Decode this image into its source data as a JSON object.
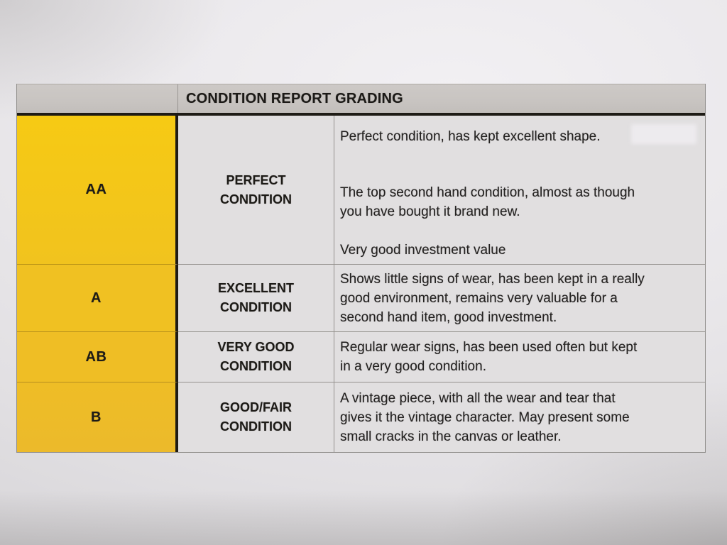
{
  "document": {
    "header": {
      "title": "CONDITION REPORT GRADING"
    },
    "rows": [
      {
        "grade": "AA",
        "condition": "PERFECT\nCONDITION",
        "description_paragraphs": [
          "Perfect condition, has kept excellent shape.",
          "The top second hand condition, almost as though\nyou have bought it brand new.",
          "Very good investment value"
        ]
      },
      {
        "grade": "A",
        "condition": "EXCELLENT\nCONDITION",
        "description_paragraphs": [
          "Shows little signs of wear, has been kept in a really\ngood environment, remains very valuable for a\nsecond hand item, good investment."
        ]
      },
      {
        "grade": "AB",
        "condition": "VERY GOOD\nCONDITION",
        "description_paragraphs": [
          "Regular wear signs, has been used often but kept\nin a very good condition."
        ]
      },
      {
        "grade": "B",
        "condition": "GOOD/FAIR\nCONDITION",
        "description_paragraphs": [
          "A vintage piece, with all the wear and tear that\ngives it the vintage character. May present some\nsmall cracks in the canvas or leather."
        ]
      }
    ],
    "colors": {
      "grade_highlight": "#f2c31d",
      "header_bar": "#c9c5c1",
      "paper": "#e6e4e7",
      "ink": "#211f1d"
    }
  }
}
